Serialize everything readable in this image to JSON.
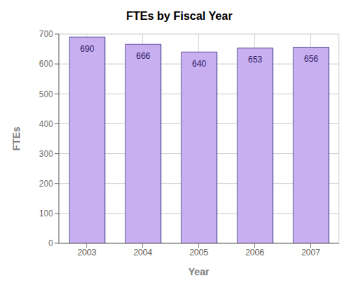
{
  "chart_data": {
    "type": "bar",
    "title": "FTEs by Fiscal Year",
    "xlabel": "Year",
    "ylabel": "FTEs",
    "categories": [
      "2003",
      "2004",
      "2005",
      "2006",
      "2007"
    ],
    "values": [
      690,
      666,
      640,
      653,
      656
    ],
    "color": "#c8aff0",
    "ylim": [
      0,
      700
    ],
    "yticks": [
      0,
      100,
      200,
      300,
      400,
      500,
      600,
      700
    ],
    "grid": true,
    "data_labels": true
  }
}
